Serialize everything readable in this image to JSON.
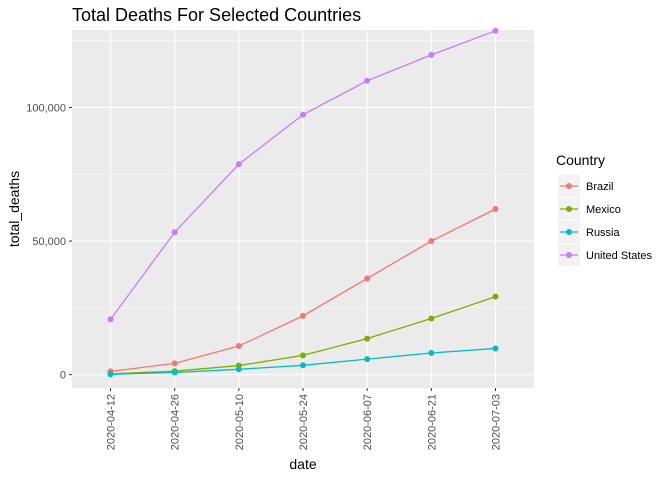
{
  "chart_data": {
    "type": "line",
    "title": "Total Deaths For Selected Countries",
    "xlabel": "date",
    "ylabel": "total_deaths",
    "x": [
      "2020-04-12",
      "2020-04-26",
      "2020-05-10",
      "2020-05-24",
      "2020-06-07",
      "2020-06-21",
      "2020-07-03"
    ],
    "y_ticks": [
      0,
      50000,
      100000
    ],
    "y_tick_labels": [
      "0",
      "50,000",
      "100,000"
    ],
    "ylim": [
      -5000,
      129000
    ],
    "grid": true,
    "legend": {
      "title": "Country",
      "position": "right"
    },
    "series": [
      {
        "name": "Brazil",
        "color": "#F8766D",
        "values": [
          1200,
          4200,
          10700,
          22000,
          36000,
          50000,
          62000
        ]
      },
      {
        "name": "Mexico",
        "color": "#7CAE00",
        "values": [
          300,
          1300,
          3400,
          7200,
          13500,
          21000,
          29200
        ]
      },
      {
        "name": "Russia",
        "color": "#00BFC4",
        "values": [
          100,
          800,
          2000,
          3500,
          5800,
          8100,
          9800
        ]
      },
      {
        "name": "United States",
        "color": "#C77CFF",
        "values": [
          20700,
          53300,
          78800,
          97300,
          110000,
          119700,
          128700
        ]
      }
    ]
  }
}
